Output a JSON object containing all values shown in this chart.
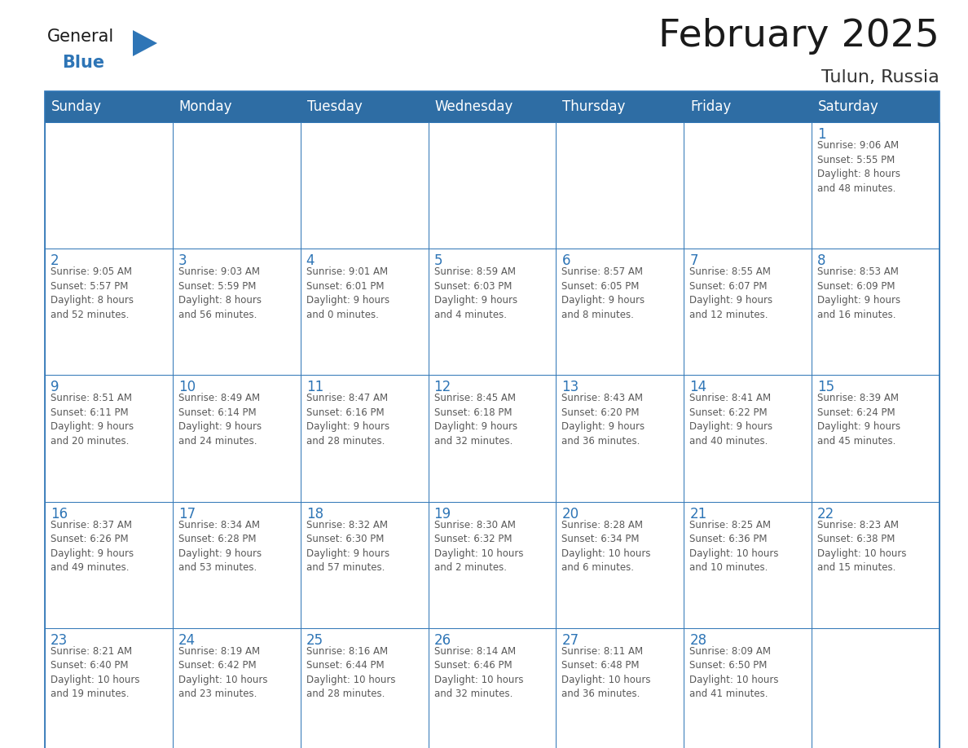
{
  "title": "February 2025",
  "subtitle": "Tulun, Russia",
  "header_bg": "#2E6DA4",
  "header_text_color": "#FFFFFF",
  "cell_bg": "#FFFFFF",
  "cell_border_color": "#2E75B6",
  "day_number_color": "#2E75B6",
  "info_text_color": "#595959",
  "days_of_week": [
    "Sunday",
    "Monday",
    "Tuesday",
    "Wednesday",
    "Thursday",
    "Friday",
    "Saturday"
  ],
  "weeks": [
    [
      {
        "day": "",
        "info": ""
      },
      {
        "day": "",
        "info": ""
      },
      {
        "day": "",
        "info": ""
      },
      {
        "day": "",
        "info": ""
      },
      {
        "day": "",
        "info": ""
      },
      {
        "day": "",
        "info": ""
      },
      {
        "day": "1",
        "info": "Sunrise: 9:06 AM\nSunset: 5:55 PM\nDaylight: 8 hours\nand 48 minutes."
      }
    ],
    [
      {
        "day": "2",
        "info": "Sunrise: 9:05 AM\nSunset: 5:57 PM\nDaylight: 8 hours\nand 52 minutes."
      },
      {
        "day": "3",
        "info": "Sunrise: 9:03 AM\nSunset: 5:59 PM\nDaylight: 8 hours\nand 56 minutes."
      },
      {
        "day": "4",
        "info": "Sunrise: 9:01 AM\nSunset: 6:01 PM\nDaylight: 9 hours\nand 0 minutes."
      },
      {
        "day": "5",
        "info": "Sunrise: 8:59 AM\nSunset: 6:03 PM\nDaylight: 9 hours\nand 4 minutes."
      },
      {
        "day": "6",
        "info": "Sunrise: 8:57 AM\nSunset: 6:05 PM\nDaylight: 9 hours\nand 8 minutes."
      },
      {
        "day": "7",
        "info": "Sunrise: 8:55 AM\nSunset: 6:07 PM\nDaylight: 9 hours\nand 12 minutes."
      },
      {
        "day": "8",
        "info": "Sunrise: 8:53 AM\nSunset: 6:09 PM\nDaylight: 9 hours\nand 16 minutes."
      }
    ],
    [
      {
        "day": "9",
        "info": "Sunrise: 8:51 AM\nSunset: 6:11 PM\nDaylight: 9 hours\nand 20 minutes."
      },
      {
        "day": "10",
        "info": "Sunrise: 8:49 AM\nSunset: 6:14 PM\nDaylight: 9 hours\nand 24 minutes."
      },
      {
        "day": "11",
        "info": "Sunrise: 8:47 AM\nSunset: 6:16 PM\nDaylight: 9 hours\nand 28 minutes."
      },
      {
        "day": "12",
        "info": "Sunrise: 8:45 AM\nSunset: 6:18 PM\nDaylight: 9 hours\nand 32 minutes."
      },
      {
        "day": "13",
        "info": "Sunrise: 8:43 AM\nSunset: 6:20 PM\nDaylight: 9 hours\nand 36 minutes."
      },
      {
        "day": "14",
        "info": "Sunrise: 8:41 AM\nSunset: 6:22 PM\nDaylight: 9 hours\nand 40 minutes."
      },
      {
        "day": "15",
        "info": "Sunrise: 8:39 AM\nSunset: 6:24 PM\nDaylight: 9 hours\nand 45 minutes."
      }
    ],
    [
      {
        "day": "16",
        "info": "Sunrise: 8:37 AM\nSunset: 6:26 PM\nDaylight: 9 hours\nand 49 minutes."
      },
      {
        "day": "17",
        "info": "Sunrise: 8:34 AM\nSunset: 6:28 PM\nDaylight: 9 hours\nand 53 minutes."
      },
      {
        "day": "18",
        "info": "Sunrise: 8:32 AM\nSunset: 6:30 PM\nDaylight: 9 hours\nand 57 minutes."
      },
      {
        "day": "19",
        "info": "Sunrise: 8:30 AM\nSunset: 6:32 PM\nDaylight: 10 hours\nand 2 minutes."
      },
      {
        "day": "20",
        "info": "Sunrise: 8:28 AM\nSunset: 6:34 PM\nDaylight: 10 hours\nand 6 minutes."
      },
      {
        "day": "21",
        "info": "Sunrise: 8:25 AM\nSunset: 6:36 PM\nDaylight: 10 hours\nand 10 minutes."
      },
      {
        "day": "22",
        "info": "Sunrise: 8:23 AM\nSunset: 6:38 PM\nDaylight: 10 hours\nand 15 minutes."
      }
    ],
    [
      {
        "day": "23",
        "info": "Sunrise: 8:21 AM\nSunset: 6:40 PM\nDaylight: 10 hours\nand 19 minutes."
      },
      {
        "day": "24",
        "info": "Sunrise: 8:19 AM\nSunset: 6:42 PM\nDaylight: 10 hours\nand 23 minutes."
      },
      {
        "day": "25",
        "info": "Sunrise: 8:16 AM\nSunset: 6:44 PM\nDaylight: 10 hours\nand 28 minutes."
      },
      {
        "day": "26",
        "info": "Sunrise: 8:14 AM\nSunset: 6:46 PM\nDaylight: 10 hours\nand 32 minutes."
      },
      {
        "day": "27",
        "info": "Sunrise: 8:11 AM\nSunset: 6:48 PM\nDaylight: 10 hours\nand 36 minutes."
      },
      {
        "day": "28",
        "info": "Sunrise: 8:09 AM\nSunset: 6:50 PM\nDaylight: 10 hours\nand 41 minutes."
      },
      {
        "day": "",
        "info": ""
      }
    ]
  ],
  "logo_general_color": "#1a1a1a",
  "logo_blue_color": "#2E75B6",
  "logo_triangle_color": "#2E75B6",
  "title_fontsize": 34,
  "subtitle_fontsize": 16,
  "header_fontsize": 12,
  "day_number_fontsize": 12,
  "info_fontsize": 8.5,
  "fig_width": 11.88,
  "fig_height": 9.18,
  "dpi": 100
}
